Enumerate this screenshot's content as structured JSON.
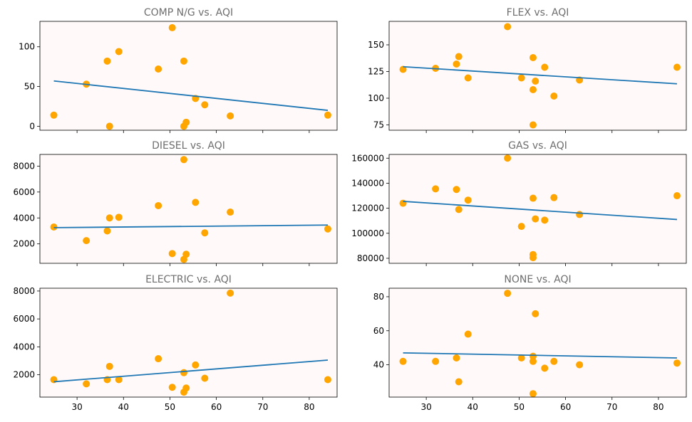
{
  "colors": {
    "plot_background": "#fff9f9",
    "point": "#ffa500",
    "line": "#1f77b4",
    "title": "#6e6e6e",
    "axis": "#000000"
  },
  "chart_data": [
    {
      "type": "scatter",
      "title": "COMP N/G vs. AQI",
      "xlabel": "",
      "ylabel": "",
      "xlim": [
        22,
        86
      ],
      "ylim": [
        -5,
        132
      ],
      "xticks": [
        30,
        40,
        50,
        60,
        70,
        80
      ],
      "xticklabels_shown": false,
      "yticks": [
        0,
        50,
        100
      ],
      "yticklabels": [
        "0",
        "50",
        "100"
      ],
      "x": [
        25,
        32,
        36.5,
        37,
        39,
        47.5,
        50.5,
        53,
        53,
        53.5,
        55.5,
        57.5,
        63,
        84
      ],
      "y": [
        14,
        53,
        82,
        0,
        94,
        72,
        124,
        82,
        0,
        5,
        35,
        27,
        13,
        14
      ],
      "fit_line": {
        "x": [
          25,
          84
        ],
        "y": [
          57,
          20
        ]
      }
    },
    {
      "type": "scatter",
      "title": "FLEX vs. AQI",
      "xlabel": "",
      "ylabel": "",
      "xlim": [
        22,
        86
      ],
      "ylim": [
        70,
        172
      ],
      "xticks": [
        30,
        40,
        50,
        60,
        70,
        80
      ],
      "xticklabels_shown": false,
      "yticks": [
        75,
        100,
        125,
        150
      ],
      "yticklabels": [
        "75",
        "100",
        "125",
        "150"
      ],
      "x": [
        25,
        32,
        36.5,
        37,
        39,
        47.5,
        50.5,
        53,
        53,
        53,
        53.5,
        55.5,
        57.5,
        63,
        84
      ],
      "y": [
        127,
        128,
        132,
        139,
        119,
        167,
        119,
        138,
        108,
        75,
        116,
        129,
        102,
        117,
        129
      ],
      "fit_line": {
        "x": [
          25,
          84
        ],
        "y": [
          129.5,
          113.5
        ]
      }
    },
    {
      "type": "scatter",
      "title": "DIESEL vs. AQI",
      "xlabel": "",
      "ylabel": "",
      "xlim": [
        22,
        86
      ],
      "ylim": [
        500,
        8900
      ],
      "xticks": [
        30,
        40,
        50,
        60,
        70,
        80
      ],
      "xticklabels_shown": false,
      "yticks": [
        2000,
        4000,
        6000,
        8000
      ],
      "yticklabels": [
        "2000",
        "4000",
        "6000",
        "8000"
      ],
      "x": [
        25,
        32,
        36.5,
        37,
        39,
        47.5,
        50.5,
        53,
        53,
        53.5,
        55.5,
        57.5,
        63,
        84
      ],
      "y": [
        3300,
        2250,
        3000,
        4000,
        4050,
        4950,
        1250,
        8500,
        800,
        1200,
        5200,
        2850,
        4450,
        3150
      ],
      "fit_line": {
        "x": [
          25,
          84
        ],
        "y": [
          3250,
          3450
        ]
      }
    },
    {
      "type": "scatter",
      "title": "GAS vs. AQI",
      "xlabel": "",
      "ylabel": "",
      "xlim": [
        22,
        86
      ],
      "ylim": [
        76000,
        163000
      ],
      "xticks": [
        30,
        40,
        50,
        60,
        70,
        80
      ],
      "xticklabels_shown": false,
      "yticks": [
        80000,
        100000,
        120000,
        140000,
        160000
      ],
      "yticklabels": [
        "80000",
        "100000",
        "120000",
        "140000",
        "160000"
      ],
      "x": [
        25,
        32,
        36.5,
        37,
        39,
        47.5,
        50.5,
        53,
        53,
        53,
        53.5,
        55.5,
        57.5,
        63,
        84
      ],
      "y": [
        124000,
        135500,
        135000,
        119000,
        126500,
        160000,
        105500,
        128000,
        83000,
        80500,
        111500,
        110500,
        128500,
        115000,
        130000
      ],
      "fit_line": {
        "x": [
          25,
          84
        ],
        "y": [
          125500,
          111000
        ]
      }
    },
    {
      "type": "scatter",
      "title": "ELECTRIC vs. AQI",
      "xlabel": "",
      "ylabel": "",
      "xlim": [
        22,
        86
      ],
      "ylim": [
        400,
        8200
      ],
      "xticks": [
        30,
        40,
        50,
        60,
        70,
        80
      ],
      "xticklabels_shown": true,
      "xticklabels": [
        "30",
        "40",
        "50",
        "60",
        "70",
        "80"
      ],
      "yticks": [
        2000,
        4000,
        6000,
        8000
      ],
      "yticklabels": [
        "2000",
        "4000",
        "6000",
        "8000"
      ],
      "x": [
        25,
        32,
        36.5,
        37,
        39,
        47.5,
        50.5,
        53,
        53,
        53.5,
        55.5,
        57.5,
        63,
        84
      ],
      "y": [
        1650,
        1350,
        1650,
        2600,
        1650,
        3150,
        1100,
        2150,
        750,
        1050,
        2700,
        1750,
        7850,
        1650
      ],
      "fit_line": {
        "x": [
          25,
          84
        ],
        "y": [
          1500,
          3050
        ]
      }
    },
    {
      "type": "scatter",
      "title": "NONE vs. AQI",
      "xlabel": "",
      "ylabel": "",
      "xlim": [
        22,
        86
      ],
      "ylim": [
        21,
        85
      ],
      "xticks": [
        30,
        40,
        50,
        60,
        70,
        80
      ],
      "xticklabels_shown": true,
      "xticklabels": [
        "30",
        "40",
        "50",
        "60",
        "70",
        "80"
      ],
      "yticks": [
        40,
        60,
        80
      ],
      "yticklabels": [
        "40",
        "60",
        "80"
      ],
      "x": [
        25,
        32,
        36.5,
        37,
        39,
        47.5,
        50.5,
        53,
        53,
        53,
        53.5,
        55.5,
        57.5,
        63,
        84
      ],
      "y": [
        42,
        42,
        44,
        30,
        58,
        82,
        44,
        45,
        42,
        23,
        70,
        38,
        42,
        40,
        41
      ],
      "fit_line": {
        "x": [
          25,
          84
        ],
        "y": [
          47,
          44
        ]
      }
    }
  ]
}
